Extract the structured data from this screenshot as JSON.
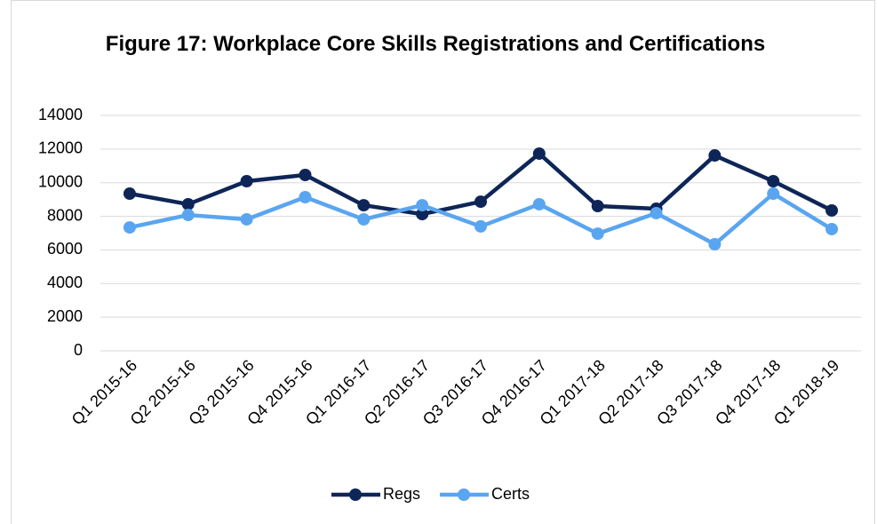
{
  "chart_data": {
    "type": "line",
    "title": "Figure 17: Workplace Core Skills Registrations and Certifications",
    "categories": [
      "Q1 2015-16",
      "Q2 2015-16",
      "Q3 2015-16",
      "Q4 2015-16",
      "Q1 2016-17",
      "Q2 2016-17",
      "Q3 2016-17",
      "Q4 2016-17",
      "Q1 2017-18",
      "Q2 2017-18",
      "Q3 2017-18",
      "Q4 2017-18",
      "Q1 2018-19"
    ],
    "series": [
      {
        "name": "Regs",
        "color": "#0e2557",
        "values": [
          9350,
          8720,
          10090,
          10460,
          8660,
          8130,
          8870,
          11730,
          8610,
          8450,
          11620,
          10090,
          8350
        ]
      },
      {
        "name": "Certs",
        "color": "#5aa5f0",
        "values": [
          7340,
          8080,
          7820,
          9140,
          7820,
          8660,
          7400,
          8720,
          6970,
          8190,
          6340,
          9350,
          7240
        ]
      }
    ],
    "ylim": [
      0,
      14000
    ],
    "yticks": [
      0,
      2000,
      4000,
      6000,
      8000,
      10000,
      12000,
      14000
    ],
    "grid": true,
    "legend": "bottom"
  }
}
